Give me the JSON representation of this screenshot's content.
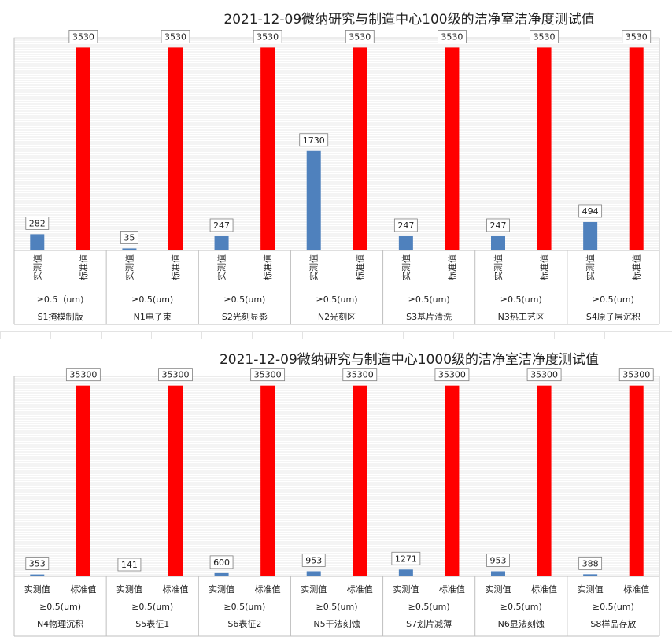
{
  "chart_data": [
    {
      "type": "bar",
      "title": "2021-12-09微纳研究与制造中心100级的洁净室洁净度测试值",
      "series_labels": [
        "实测值",
        "标准值"
      ],
      "colors": {
        "measured": "#4f81bd",
        "standard": "#ff0000"
      },
      "ylim": [
        0,
        3700
      ],
      "grid": true,
      "groups": [
        {
          "location": "S1掩模制版",
          "size": "≥0.5（um)",
          "measured": 282,
          "standard": 3530
        },
        {
          "location": "N1电子束",
          "size": "≥0.5(um)",
          "measured": 35,
          "standard": 3530
        },
        {
          "location": "S2光刻显影",
          "size": "≥0.5(um)",
          "measured": 247,
          "standard": 3530
        },
        {
          "location": "N2光刻区",
          "size": "≥0.5(um)",
          "measured": 1730,
          "standard": 3530
        },
        {
          "location": "S3基片清洗",
          "size": "≥0.5(um)",
          "measured": 247,
          "standard": 3530
        },
        {
          "location": "N3热工艺区",
          "size": "≥0.5(um)",
          "measured": 247,
          "standard": 3530
        },
        {
          "location": "S4原子层沉积",
          "size": "≥0.5(um)",
          "measured": 494,
          "standard": 3530
        }
      ]
    },
    {
      "type": "bar",
      "title": "2021-12-09微纳研究与制造中心1000级的洁净室洁净度测试值",
      "series_labels": [
        "实测值",
        "标准值"
      ],
      "colors": {
        "measured": "#4f81bd",
        "standard": "#ff0000"
      },
      "ylim": [
        0,
        37000
      ],
      "grid": true,
      "groups": [
        {
          "location": "N4物理沉积",
          "size": "≥0.5(um)",
          "measured": 353,
          "standard": 35300
        },
        {
          "location": "S5表征1",
          "size": "≥0.5(um)",
          "measured": 141,
          "standard": 35300
        },
        {
          "location": "S6表征2",
          "size": "≥0.5(um)",
          "measured": 600,
          "standard": 35300
        },
        {
          "location": "N5干法刻蚀",
          "size": "≥0.5(um)",
          "measured": 953,
          "standard": 35300
        },
        {
          "location": "S7划片减薄",
          "size": "≥0.5(um)",
          "measured": 1271,
          "standard": 35300
        },
        {
          "location": "N6显法刻蚀",
          "size": "≥0.5(um)",
          "measured": 953,
          "standard": 35300
        },
        {
          "location": "S8样品存放",
          "size": "≥0.5(um)",
          "measured": 388,
          "standard": 35300
        }
      ]
    }
  ]
}
